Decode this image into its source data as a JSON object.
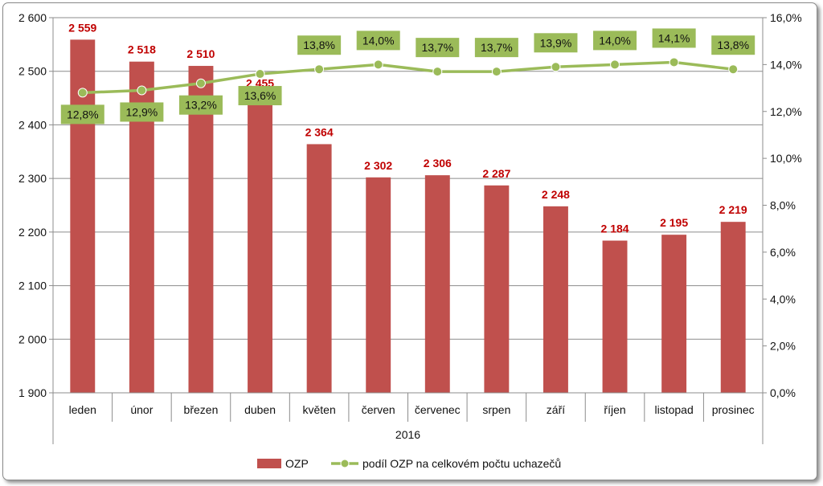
{
  "chart_data": {
    "type": "bar",
    "categories": [
      "leden",
      "únor",
      "březen",
      "duben",
      "květen",
      "červen",
      "červenec",
      "srpen",
      "září",
      "říjen",
      "listopad",
      "prosinec"
    ],
    "xgroup_label": "2016",
    "series": [
      {
        "name": "OZP",
        "type": "bar",
        "axis": "left",
        "color": "#c0504d",
        "values": [
          2559,
          2518,
          2510,
          2455,
          2364,
          2302,
          2306,
          2287,
          2248,
          2184,
          2195,
          2219
        ],
        "labels": [
          "2 559",
          "2 518",
          "2 510",
          "2 455",
          "2 364",
          "2 302",
          "2 306",
          "2 287",
          "2 248",
          "2 184",
          "2 195",
          "2 219"
        ]
      },
      {
        "name": "podíl OZP na celkovém počtu uchazečů",
        "type": "line",
        "axis": "right",
        "color": "#9bbb59",
        "values": [
          12.8,
          12.9,
          13.2,
          13.6,
          13.8,
          14.0,
          13.7,
          13.7,
          13.9,
          14.0,
          14.1,
          13.8
        ],
        "labels": [
          "12,8%",
          "12,9%",
          "13,2%",
          "13,6%",
          "13,8%",
          "14,0%",
          "13,7%",
          "13,7%",
          "13,9%",
          "14,0%",
          "14,1%",
          "13,8%"
        ]
      }
    ],
    "ylim_left": [
      1900,
      2600
    ],
    "yticks_left": [
      "1 900",
      "2 000",
      "2 100",
      "2 200",
      "2 300",
      "2 400",
      "2 500",
      "2 600"
    ],
    "ylim_right": [
      0,
      16
    ],
    "yticks_right": [
      "0,0%",
      "2,0%",
      "4,0%",
      "6,0%",
      "8,0%",
      "10,0%",
      "12,0%",
      "14,0%",
      "16,0%"
    ],
    "grid": "horizontal",
    "legend_position": "bottom"
  }
}
